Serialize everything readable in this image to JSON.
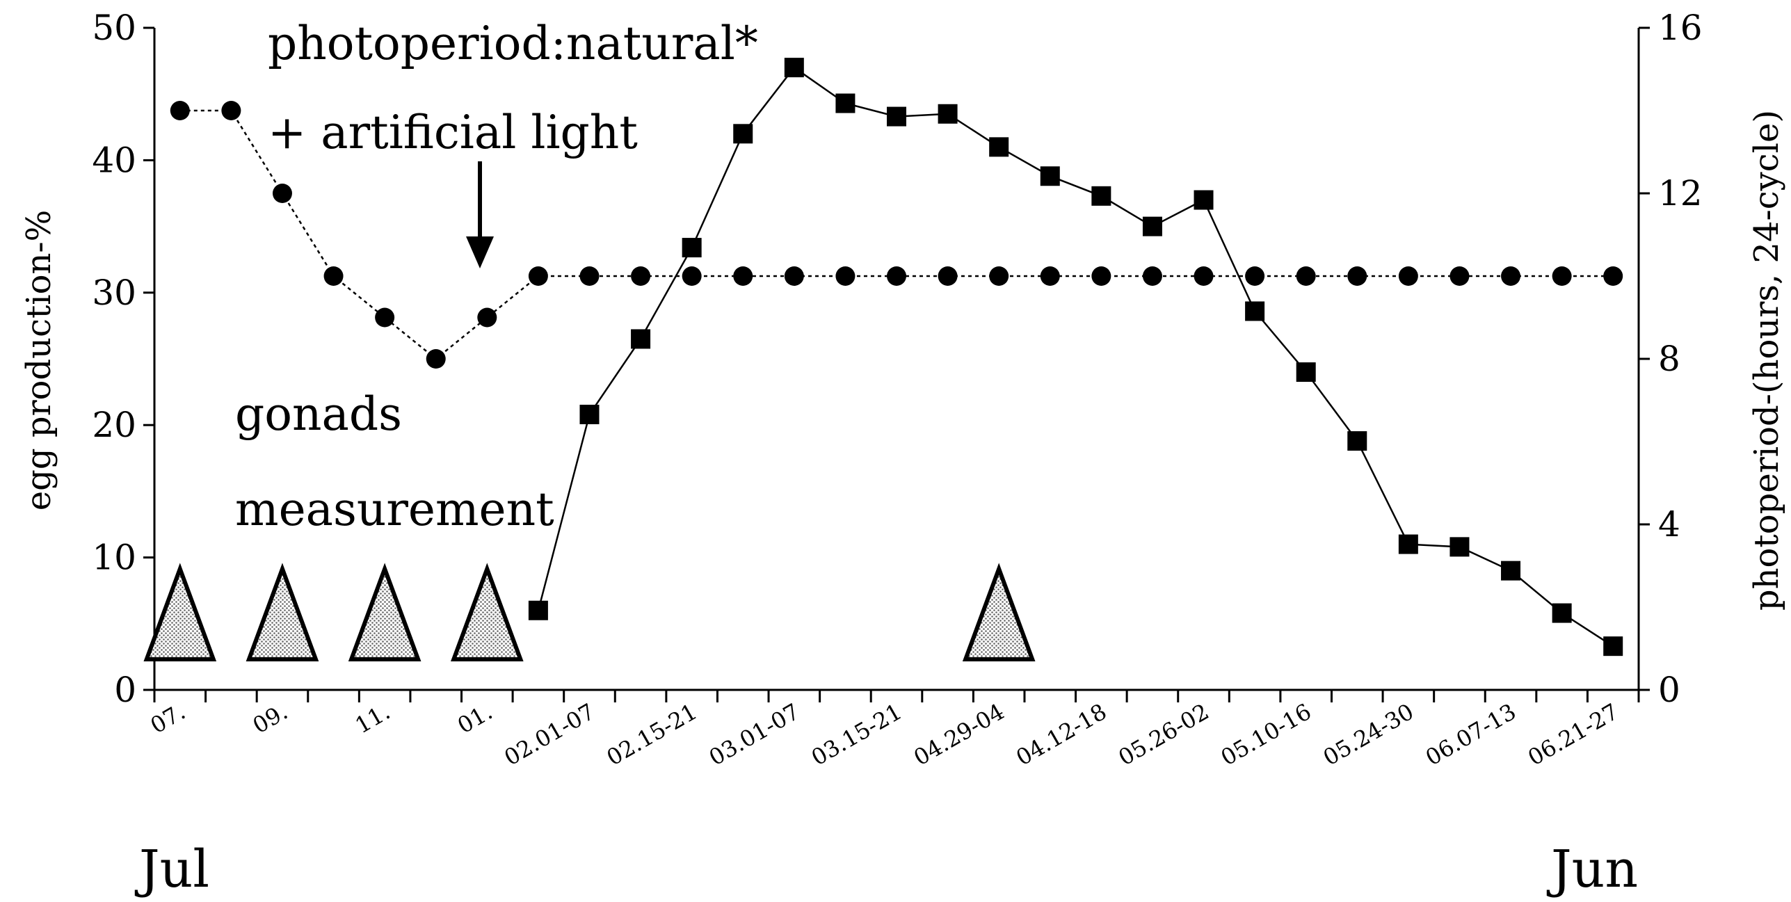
{
  "chart_data": {
    "type": "line",
    "ylabel_left": "egg production-%",
    "ylabel_right": "photoperiod-(hours, 24-cycle)",
    "ylim_left": [
      0,
      50
    ],
    "ylim_right": [
      0,
      16
    ],
    "yticks_left": [
      "0",
      "10",
      "20",
      "30",
      "40",
      "50"
    ],
    "yticks_right": [
      "0",
      "4",
      "8",
      "12",
      "16"
    ],
    "x_tick_labels": [
      "07.",
      "09.",
      "11.",
      "01.",
      "02.01-07",
      "02.15-21",
      "03.01-07",
      "03.15-21",
      "04.29-04",
      "04.12-18",
      "05.26-02",
      "05.10-16",
      "05.24-30",
      "06.07-13",
      "06.21-27"
    ],
    "start_label": "Jul",
    "end_label": "Jun",
    "annotations": {
      "photoperiod_line1": "photoperiod:natural*",
      "photoperiod_line2": "+ artificial light",
      "gonads_line1": "gonads",
      "gonads_line2": "measurement"
    },
    "series": [
      {
        "axis": "right",
        "style": "dashed",
        "marker": "circle",
        "x": [
          0.5,
          1.5,
          2.5,
          3.5,
          4.5,
          5.5,
          6.5,
          7.5,
          8.5,
          9.5,
          10.5,
          11.5,
          12.5,
          13.5,
          14.5,
          15.5,
          16.5,
          17.5,
          18.5,
          19.5,
          20.5,
          21.5,
          22.5,
          23.5,
          24.5,
          25.5,
          26.5,
          27.5,
          28.5
        ],
        "values": [
          14,
          14,
          12,
          10,
          9,
          8,
          9,
          10,
          10,
          10,
          10,
          10,
          10,
          10,
          10,
          10,
          10,
          10,
          10,
          10,
          10,
          10,
          10,
          10,
          10,
          10,
          10,
          10,
          10
        ]
      },
      {
        "axis": "left",
        "style": "solid",
        "marker": "square",
        "x": [
          7.5,
          8.5,
          9.5,
          10.5,
          11.5,
          12.5,
          13.5,
          14.5,
          15.5,
          16.5,
          17.5,
          18.5,
          19.5,
          20.5,
          21.5,
          22.5,
          23.5,
          24.5,
          25.5,
          26.5,
          27.5,
          28.5
        ],
        "values": [
          6,
          20.8,
          26.5,
          33.4,
          42,
          47,
          44.3,
          43.3,
          43.5,
          41,
          38.8,
          37.3,
          35,
          37,
          28.6,
          24,
          18.8,
          11,
          10.8,
          9,
          5.8,
          3.3
        ]
      }
    ],
    "gonad_measurement_positions": [
      0.5,
      2.5,
      4.5,
      6.5,
      16.5
    ]
  }
}
